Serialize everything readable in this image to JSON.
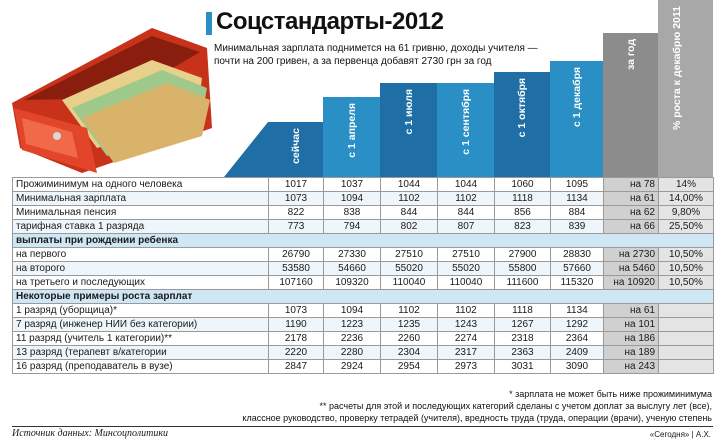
{
  "title": "Соцстандарты-2012",
  "subtitle": "Минимальная зарплата поднимется на 61 гривню, доходы учителя — почти на 200 гривен, а за первенца добавят 2730 грн за год",
  "columns": [
    "сейчас",
    "с 1 апреля",
    "с 1 июля",
    "с 1 сентября",
    "с 1 октября",
    "с 1 декабря",
    "за год",
    "% роста к декабрю 2011"
  ],
  "rows": [
    {
      "label": "Прожиминимум на одного человека",
      "values": [
        "1017",
        "1037",
        "1044",
        "1044",
        "1060",
        "1095"
      ],
      "growth": "на 78",
      "pct": "14%"
    },
    {
      "label": "Минимальная зарплата",
      "values": [
        "1073",
        "1094",
        "1102",
        "1102",
        "1118",
        "1134"
      ],
      "growth": "на 61",
      "pct": "14,00%"
    },
    {
      "label": "Минимальная пенсия",
      "values": [
        "822",
        "838",
        "844",
        "844",
        "856",
        "884"
      ],
      "growth": "на 62",
      "pct": "9,80%"
    },
    {
      "label": "тарифная ставка 1 разряда",
      "values": [
        "773",
        "794",
        "802",
        "807",
        "823",
        "839"
      ],
      "growth": "на 66",
      "pct": "25,50%"
    }
  ],
  "section_birth": "выплаты при рождении ребенка",
  "birth_rows": [
    {
      "label": "на первого",
      "values": [
        "26790",
        "27330",
        "27510",
        "27510",
        "27900",
        "28830"
      ],
      "growth": "на 2730",
      "pct": "10,50%"
    },
    {
      "label": "на второго",
      "values": [
        "53580",
        "54660",
        "55020",
        "55020",
        "55800",
        "57660"
      ],
      "growth": "на 5460",
      "pct": "10,50%"
    },
    {
      "label": "на третьего и последующих",
      "values": [
        "107160",
        "109320",
        "110040",
        "110040",
        "111600",
        "115320"
      ],
      "growth": "на 10920",
      "pct": "10,50%"
    }
  ],
  "section_salary": "Некоторые примеры роста зарплат",
  "salary_rows": [
    {
      "label": "1 разряд (уборщица)*",
      "values": [
        "1073",
        "1094",
        "1102",
        "1102",
        "1118",
        "1134"
      ],
      "growth": "на 61",
      "pct": ""
    },
    {
      "label": "7 разряд (инженер НИИ без категории)",
      "values": [
        "1190",
        "1223",
        "1235",
        "1243",
        "1267",
        "1292"
      ],
      "growth": "на 101",
      "pct": ""
    },
    {
      "label": "11 разряд (учитель 1 категории)**",
      "values": [
        "2178",
        "2236",
        "2260",
        "2274",
        "2318",
        "2364"
      ],
      "growth": "на 186",
      "pct": ""
    },
    {
      "label": "13 разряд (терапевт в/категории",
      "values": [
        "2220",
        "2280",
        "2304",
        "2317",
        "2363",
        "2409"
      ],
      "growth": "на 189",
      "pct": ""
    },
    {
      "label": "16 разряд (преподаватель в вузе)",
      "values": [
        "2847",
        "2924",
        "2954",
        "2973",
        "3031",
        "3090"
      ],
      "growth": "на 243",
      "pct": ""
    }
  ],
  "note1": "* зарплата не может быть ниже прожиминимума",
  "note2": "** расчеты для этой и последующих категорий сделаны с учетом доплат за выслугу лет (все),",
  "note3": "классное руководство, проверку тетрадей (учителя), вредность труда (труда, операции (врачи), ученую степень",
  "source": "Источник данных: Минсоцполитики",
  "credit": "«Сегодня» | А.Х.",
  "colors": {
    "blue_dark": "#1f6fa6",
    "blue": "#2a8fc4",
    "blue_light": "#cfe6f4",
    "gray": "#8c8c8c",
    "gray_light": "#a8a8a8"
  }
}
